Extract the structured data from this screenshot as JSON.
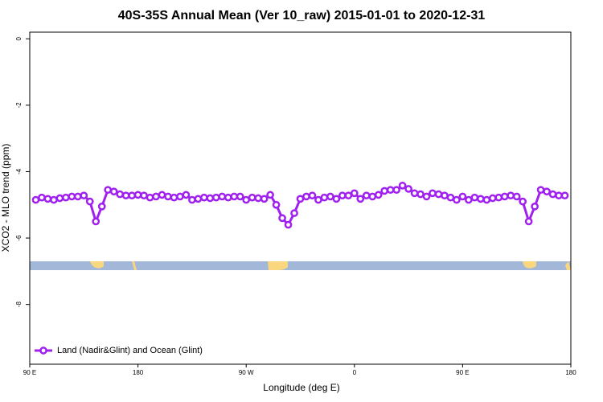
{
  "chart_data": {
    "type": "line",
    "title": "40S-35S Annual Mean (Ver 10_raw)   2015-01-01 to 2020-12-31",
    "x_label": "Longitude (deg E)",
    "y_label": "XCO2 - MLO trend (ppm)",
    "x": [
      95,
      100,
      105,
      110,
      115,
      120,
      125,
      130,
      135,
      140,
      145,
      150,
      155,
      160,
      165,
      170,
      175,
      180,
      185,
      190,
      195,
      200,
      205,
      210,
      215,
      220,
      225,
      230,
      235,
      240,
      245,
      250,
      255,
      260,
      265,
      270,
      275,
      280,
      285,
      290,
      295,
      300,
      305,
      310,
      315,
      320,
      325,
      330,
      335,
      340,
      345,
      350,
      355,
      360,
      365,
      370,
      375,
      380,
      385,
      390,
      395,
      400,
      405,
      410,
      415,
      420,
      425,
      430,
      435,
      440,
      445,
      450,
      455,
      460,
      465,
      470,
      475,
      480,
      485,
      490,
      495,
      500,
      505,
      510,
      515,
      520,
      525,
      530,
      535
    ],
    "series": [
      {
        "name": "Land (Nadir&Glint) and Ocean (Glint)",
        "color": "#a020f0",
        "values": [
          -4.85,
          -4.78,
          -4.82,
          -4.85,
          -4.8,
          -4.78,
          -4.75,
          -4.75,
          -4.72,
          -4.9,
          -5.5,
          -5.05,
          -4.55,
          -4.6,
          -4.68,
          -4.72,
          -4.72,
          -4.7,
          -4.72,
          -4.78,
          -4.75,
          -4.7,
          -4.75,
          -4.78,
          -4.75,
          -4.7,
          -4.85,
          -4.82,
          -4.78,
          -4.8,
          -4.78,
          -4.75,
          -4.78,
          -4.75,
          -4.75,
          -4.85,
          -4.78,
          -4.8,
          -4.82,
          -4.7,
          -5.0,
          -5.4,
          -5.6,
          -5.25,
          -4.82,
          -4.75,
          -4.72,
          -4.85,
          -4.78,
          -4.75,
          -4.82,
          -4.72,
          -4.72,
          -4.65,
          -4.82,
          -4.72,
          -4.75,
          -4.7,
          -4.58,
          -4.55,
          -4.55,
          -4.42,
          -4.52,
          -4.65,
          -4.68,
          -4.75,
          -4.65,
          -4.68,
          -4.72,
          -4.78,
          -4.85,
          -4.75,
          -4.85,
          -4.78,
          -4.82,
          -4.85,
          -4.8,
          -4.78,
          -4.75,
          -4.72,
          -4.75,
          -4.9,
          -5.5,
          -5.05,
          -4.55,
          -4.6,
          -4.68,
          -4.72,
          -4.72
        ]
      }
    ],
    "xlim": [
      90,
      540
    ],
    "xticks": [
      {
        "value": 90,
        "label": "90 E"
      },
      180,
      {
        "value": 270,
        "label": "90 W"
      },
      {
        "value": 360,
        "label": "0"
      },
      {
        "value": 450,
        "label": "90 E"
      },
      {
        "value": 540,
        "label": "180"
      }
    ],
    "ylim": [
      -9.8,
      0.2
    ],
    "yticks": [
      0,
      -2,
      -4,
      -6,
      -8
    ],
    "legend": "bottom-left"
  }
}
